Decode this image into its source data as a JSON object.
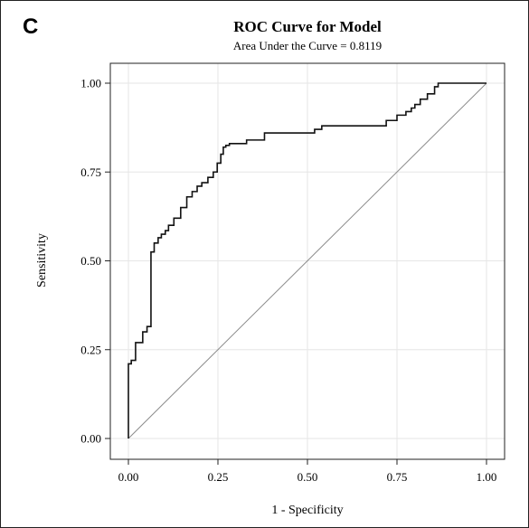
{
  "panel_label": "C",
  "chart_data": {
    "type": "line",
    "title": "ROC Curve for Model",
    "subtitle": "Area Under the Curve = 0.8119",
    "xlabel": "1 - Specificity",
    "ylabel": "Sensitivity",
    "xlim": [
      0,
      1
    ],
    "ylim": [
      0,
      1
    ],
    "xticks": [
      "0.00",
      "0.25",
      "0.50",
      "0.75",
      "1.00"
    ],
    "yticks": [
      "0.00",
      "0.25",
      "0.50",
      "0.75",
      "1.00"
    ],
    "grid": true,
    "legend": "none",
    "series": [
      {
        "x": [
          0.0,
          0.0,
          0.008,
          0.008,
          0.02,
          0.02,
          0.04,
          0.04,
          0.052,
          0.052,
          0.063,
          0.063,
          0.072,
          0.072,
          0.083,
          0.083,
          0.092,
          0.092,
          0.103,
          0.103,
          0.112,
          0.112,
          0.127,
          0.127,
          0.146,
          0.146,
          0.163,
          0.163,
          0.178,
          0.178,
          0.192,
          0.192,
          0.205,
          0.205,
          0.222,
          0.222,
          0.237,
          0.237,
          0.248,
          0.248,
          0.258,
          0.258,
          0.265,
          0.265,
          0.272,
          0.272,
          0.282,
          0.282,
          0.33,
          0.33,
          0.38,
          0.38,
          0.52,
          0.52,
          0.54,
          0.54,
          0.72,
          0.72,
          0.75,
          0.75,
          0.775,
          0.775,
          0.79,
          0.79,
          0.8,
          0.8,
          0.815,
          0.815,
          0.835,
          0.835,
          0.855,
          0.855,
          0.865,
          0.865,
          0.88,
          0.88,
          1.0
        ],
        "y": [
          0.0,
          0.21,
          0.21,
          0.22,
          0.22,
          0.27,
          0.27,
          0.3,
          0.3,
          0.315,
          0.315,
          0.525,
          0.525,
          0.55,
          0.55,
          0.565,
          0.565,
          0.575,
          0.575,
          0.585,
          0.585,
          0.6,
          0.6,
          0.62,
          0.62,
          0.65,
          0.65,
          0.68,
          0.68,
          0.695,
          0.695,
          0.71,
          0.71,
          0.72,
          0.72,
          0.735,
          0.735,
          0.75,
          0.75,
          0.775,
          0.775,
          0.8,
          0.8,
          0.82,
          0.82,
          0.825,
          0.825,
          0.83,
          0.83,
          0.84,
          0.84,
          0.86,
          0.86,
          0.87,
          0.87,
          0.88,
          0.88,
          0.895,
          0.895,
          0.91,
          0.91,
          0.92,
          0.92,
          0.93,
          0.93,
          0.94,
          0.94,
          0.955,
          0.955,
          0.97,
          0.97,
          0.99,
          0.99,
          1.0,
          1.0,
          1.0,
          1.0
        ]
      }
    ],
    "reference_line": {
      "x": [
        0,
        1
      ],
      "y": [
        0,
        1
      ]
    },
    "colors": {
      "curve": "#111111",
      "diagonal": "#8a8a8a",
      "grid": "#e6e6e6",
      "axis": "#222222"
    }
  }
}
